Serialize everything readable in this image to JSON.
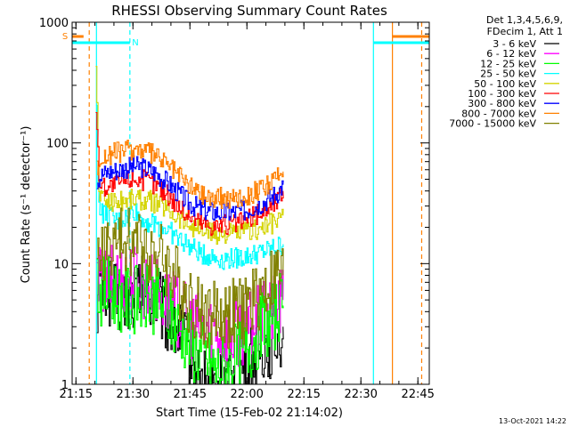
{
  "chart_data": {
    "type": "line",
    "title": "RHESSI Observing Summary Count Rates",
    "xlabel": "Start Time (15-Feb-02 21:14:02)",
    "ylabel": "Count Rate (s⁻¹ detector⁻¹)",
    "x_unit": "minutes after 21:14:02",
    "xlim": [
      0,
      94
    ],
    "ylim": [
      1,
      1000
    ],
    "y_scale": "log",
    "x_ticks": [
      {
        "label": "21:15",
        "x": 1
      },
      {
        "label": "21:30",
        "x": 16
      },
      {
        "label": "21:45",
        "x": 31
      },
      {
        "label": "22:00",
        "x": 46
      },
      {
        "label": "22:15",
        "x": 61
      },
      {
        "label": "22:30",
        "x": 76
      },
      {
        "label": "22:45",
        "x": 91
      }
    ],
    "y_ticks": [
      {
        "label": "1",
        "y": 1
      },
      {
        "label": "10",
        "y": 10
      },
      {
        "label": "100",
        "y": 100
      },
      {
        "label": "1000",
        "y": 1000
      }
    ],
    "legend": {
      "header": [
        "Det 1,3,4,5,6,9,",
        "FDecim 1, Att 1"
      ],
      "placement": "right"
    },
    "grid": false,
    "series": [
      {
        "name": "3 - 6 keV",
        "color": "#000000",
        "x": [
          6.5,
          7,
          8,
          10,
          12,
          15,
          18,
          20,
          22,
          24,
          25,
          27,
          28,
          30,
          32,
          34,
          36,
          38,
          40,
          42,
          44,
          46,
          48,
          50,
          52,
          54,
          55,
          55.5
        ],
        "y": [
          5,
          6,
          6.5,
          6,
          5,
          5,
          6,
          5.5,
          5,
          4,
          3.5,
          3,
          2.8,
          2,
          1.5,
          1,
          1,
          1,
          1,
          1,
          1.2,
          1.5,
          1.8,
          2,
          2.2,
          2.5,
          2.8,
          3
        ]
      },
      {
        "name": "6 - 12 keV",
        "color": "#ff00ff",
        "x": [
          6.5,
          7,
          9,
          12,
          15,
          18,
          20,
          22,
          24,
          26,
          28,
          30,
          32,
          35,
          38,
          40,
          42,
          44,
          46,
          48,
          50,
          52,
          54,
          55.5
        ],
        "y": [
          6,
          7,
          7,
          7.5,
          8,
          7,
          6.5,
          6,
          5,
          4.5,
          4,
          3.5,
          3,
          3,
          2.8,
          2.6,
          2.5,
          2.8,
          3,
          3.2,
          3.5,
          4,
          4.5,
          5
        ]
      },
      {
        "name": "12 - 25 keV",
        "color": "#00ff00",
        "x": [
          6.5,
          7,
          9,
          12,
          15,
          18,
          20,
          22,
          24,
          25,
          26,
          28,
          30,
          32,
          34,
          36,
          38,
          40,
          42,
          44,
          46,
          48,
          50,
          52,
          54,
          55.5
        ],
        "y": [
          8,
          6,
          6,
          5.5,
          5,
          5,
          5.2,
          5,
          4.5,
          4,
          3.5,
          3,
          2.5,
          2,
          1.8,
          1.5,
          1.3,
          1.4,
          1.5,
          1.8,
          2,
          2.5,
          3,
          3.5,
          4,
          4.5
        ]
      },
      {
        "name": "25 - 50 keV",
        "color": "#00ffff",
        "x": [
          6.3,
          6.5,
          7,
          8,
          10,
          12,
          14,
          16,
          18,
          20,
          22,
          24,
          26,
          28,
          30,
          32,
          34,
          36,
          38,
          40,
          42,
          44,
          46,
          48,
          50,
          52,
          54,
          55.5
        ],
        "y": [
          200,
          60,
          32,
          26,
          24,
          22,
          24,
          28,
          24,
          22,
          21,
          20,
          18,
          16,
          14.5,
          13,
          12,
          11.5,
          11,
          11,
          11,
          11.2,
          11.5,
          12,
          12.5,
          13,
          14,
          14.5
        ]
      },
      {
        "name": "50 - 100 keV",
        "color": "#d4d400",
        "x": [
          6.2,
          6.5,
          7,
          8,
          10,
          12,
          14,
          16,
          18,
          20,
          22,
          24,
          26,
          28,
          30,
          32,
          34,
          36,
          38,
          40,
          42,
          44,
          46,
          48,
          50,
          52,
          54,
          55.5
        ],
        "y": [
          450,
          200,
          40,
          34,
          33,
          33,
          34,
          35,
          34,
          33,
          32,
          30,
          27,
          24,
          22,
          20,
          19,
          18,
          17.5,
          17.5,
          17.5,
          18,
          18.5,
          19,
          20,
          21,
          23,
          25
        ]
      },
      {
        "name": "100 - 300 keV",
        "color": "#ff0000",
        "x": [
          6.2,
          6.5,
          7,
          8,
          10,
          12,
          14,
          16,
          18,
          20,
          22,
          24,
          26,
          28,
          30,
          32,
          34,
          36,
          38,
          40,
          42,
          44,
          46,
          48,
          50,
          52,
          54,
          55.5
        ],
        "y": [
          200,
          130,
          50,
          44,
          44,
          46,
          50,
          52,
          50,
          48,
          45,
          40,
          35,
          30,
          26,
          24,
          22,
          21,
          21,
          21,
          21,
          22,
          23,
          25,
          27,
          30,
          34,
          40
        ]
      },
      {
        "name": "300 - 800 keV",
        "color": "#0000ff",
        "x": [
          6.5,
          7,
          8,
          10,
          12,
          14,
          16,
          18,
          20,
          22,
          24,
          26,
          28,
          30,
          32,
          34,
          36,
          38,
          40,
          42,
          44,
          46,
          48,
          50,
          52,
          54,
          55.5
        ],
        "y": [
          50,
          52,
          55,
          58,
          60,
          62,
          64,
          63,
          60,
          56,
          50,
          44,
          38,
          33,
          30,
          28,
          27,
          26.5,
          26.5,
          26.5,
          27,
          28,
          30,
          32,
          35,
          39,
          45
        ]
      },
      {
        "name": "800 - 7000 keV",
        "color": "#ff8000",
        "x": [
          6.5,
          7,
          8,
          10,
          12,
          14,
          16,
          18,
          20,
          22,
          24,
          26,
          28,
          30,
          32,
          34,
          36,
          38,
          40,
          42,
          44,
          46,
          48,
          50,
          52,
          54,
          55.5
        ],
        "y": [
          60,
          70,
          75,
          80,
          84,
          87,
          89,
          88,
          84,
          78,
          70,
          62,
          54,
          47,
          42,
          38,
          36,
          35,
          35,
          35,
          36,
          37,
          39,
          42,
          46,
          52,
          58
        ]
      },
      {
        "name": "7000 - 15000 keV",
        "color": "#808000",
        "x": [
          6.5,
          7,
          8,
          10,
          12,
          14,
          16,
          18,
          20,
          22,
          24,
          26,
          28,
          30,
          32,
          34,
          36,
          38,
          40,
          42,
          44,
          46,
          48,
          50,
          52,
          54,
          55.5
        ],
        "y": [
          8,
          12,
          13,
          14,
          15,
          15.5,
          15.5,
          15,
          14,
          12.5,
          11,
          9,
          7,
          5.5,
          4.5,
          4,
          3.8,
          3.8,
          3.8,
          3.8,
          4,
          4.5,
          5,
          6,
          7,
          8,
          8
        ]
      }
    ],
    "markers": [
      {
        "label": "S",
        "color": "#ff8000"
      },
      {
        "label": "N",
        "color": "#00ffff"
      }
    ],
    "flags": [
      {
        "color": "#ff8000",
        "dashed": true,
        "x": 4.5
      },
      {
        "color": "#00ffff",
        "dashed": true,
        "x": 15.2
      },
      {
        "color": "#00ffff",
        "dashed": false,
        "x": 6.4
      },
      {
        "color": "#00ffff",
        "dashed": false,
        "x": 79.3
      },
      {
        "color": "#ff8000",
        "dashed": false,
        "x": 84.3
      },
      {
        "color": "#ff8000",
        "dashed": true,
        "x": 92
      }
    ],
    "saa_bars": [
      {
        "color": "#ff8000",
        "x": [
          0,
          3
        ]
      },
      {
        "color": "#ff8000",
        "x": [
          84.3,
          94
        ]
      },
      {
        "color": "#00ffff",
        "x": [
          0,
          15.2
        ]
      },
      {
        "color": "#00ffff",
        "x": [
          79.3,
          94
        ]
      }
    ],
    "timestamp": "13-Oct-2021 14:22"
  }
}
